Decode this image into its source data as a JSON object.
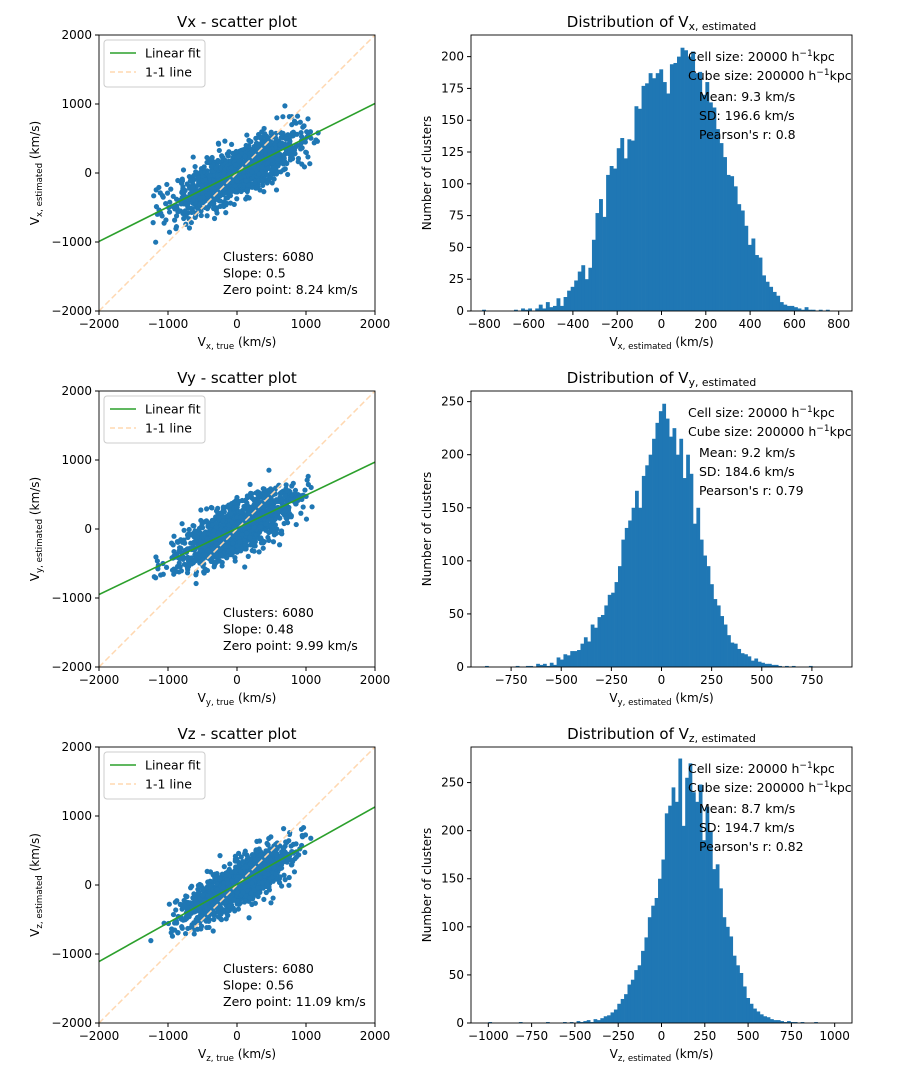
{
  "chart_data": [
    {
      "type": "scatter",
      "title": "Vx - scatter plot",
      "xlabel": {
        "base": "V",
        "sub": "x, true",
        "unit": " (km/s)"
      },
      "ylabel": {
        "base": "V",
        "sub": "x, estimated",
        "unit": " (km/s)"
      },
      "xlim": [
        -2000,
        2000
      ],
      "ylim": [
        -2000,
        2000
      ],
      "xticks": [
        -2000,
        -1000,
        0,
        1000,
        2000
      ],
      "yticks": [
        -2000,
        -1000,
        0,
        1000,
        2000
      ],
      "legend": {
        "placement": "top-left",
        "entries": [
          {
            "label": "Linear fit",
            "color": "#2ca02c",
            "style": "solid"
          },
          {
            "label": "1-1 line",
            "color": "#ffd8b1",
            "style": "dashed"
          }
        ]
      },
      "fit": {
        "slope": 0.5,
        "intercept": 8.24
      },
      "scatter_color": "#1f77b4",
      "cloud": {
        "x_center": 0,
        "x_sd": 420,
        "resid_sd": 180,
        "n_points": 1400
      },
      "annotations": [
        "Clusters: 6080",
        "Slope: 0.5",
        "Zero point: 8.24 km/s"
      ]
    },
    {
      "type": "bar",
      "title": {
        "base": "Distribution of V",
        "sub": "x, estimated"
      },
      "xlabel": {
        "base": "V",
        "sub": "x, estimated",
        "unit": " (km/s)"
      },
      "ylabel": "Number of clusters",
      "xlim": [
        -860,
        860
      ],
      "ylim": [
        0,
        217
      ],
      "xticks": [
        -800,
        -600,
        -400,
        -200,
        0,
        200,
        400,
        600,
        800
      ],
      "yticks": [
        0,
        25,
        50,
        75,
        100,
        125,
        150,
        175,
        200
      ],
      "bar_color": "#1f77b4",
      "bins": {
        "min": -810,
        "max": 790,
        "count": 100
      },
      "counts": [
        1,
        0,
        0,
        0,
        0,
        0,
        0,
        0,
        0,
        1,
        0,
        2,
        1,
        2,
        0,
        2,
        5,
        2,
        7,
        3,
        4,
        10,
        4,
        11,
        16,
        19,
        24,
        31,
        36,
        25,
        34,
        56,
        77,
        88,
        74,
        107,
        114,
        112,
        128,
        136,
        120,
        135,
        134,
        161,
        159,
        177,
        179,
        187,
        183,
        187,
        190,
        180,
        171,
        194,
        195,
        200,
        207,
        205,
        200,
        204,
        187,
        188,
        170,
        180,
        164,
        160,
        143,
        132,
        121,
        107,
        106,
        98,
        84,
        79,
        67,
        52,
        57,
        44,
        42,
        28,
        23,
        19,
        15,
        12,
        7,
        5,
        4,
        4,
        3,
        2,
        1,
        3,
        1,
        1,
        0,
        1,
        0,
        1,
        0,
        0
      ],
      "annotations": [
        {
          "base": "Cell size: 20000 h",
          "sup": "−1",
          "tail": "kpc"
        },
        {
          "base": "Cube size: 200000 h",
          "sup": "−1",
          "tail": "kpc"
        },
        "Mean: 9.3 km/s",
        "SD: 196.6 km/s",
        "Pearson's r: 0.8"
      ]
    },
    {
      "type": "scatter",
      "title": "Vy - scatter plot",
      "xlabel": {
        "base": "V",
        "sub": "y, true",
        "unit": " (km/s)"
      },
      "ylabel": {
        "base": "V",
        "sub": "y, estimated",
        "unit": " (km/s)"
      },
      "xlim": [
        -2000,
        2000
      ],
      "ylim": [
        -2000,
        2000
      ],
      "xticks": [
        -2000,
        -1000,
        0,
        1000,
        2000
      ],
      "yticks": [
        -2000,
        -1000,
        0,
        1000,
        2000
      ],
      "legend": {
        "placement": "top-left",
        "entries": [
          {
            "label": "Linear fit",
            "color": "#2ca02c",
            "style": "solid"
          },
          {
            "label": "1-1 line",
            "color": "#ffd8b1",
            "style": "dashed"
          }
        ]
      },
      "fit": {
        "slope": 0.48,
        "intercept": 9.99
      },
      "scatter_color": "#1f77b4",
      "cloud": {
        "x_center": 0,
        "x_sd": 400,
        "resid_sd": 170,
        "n_points": 1400
      },
      "annotations": [
        "Clusters: 6080",
        "Slope: 0.48",
        "Zero point: 9.99 km/s"
      ]
    },
    {
      "type": "bar",
      "title": {
        "base": "Distribution of V",
        "sub": "y, estimated"
      },
      "xlabel": {
        "base": "V",
        "sub": "y, estimated",
        "unit": " (km/s)"
      },
      "ylabel": "Number of clusters",
      "xlim": [
        -950,
        950
      ],
      "ylim": [
        0,
        260
      ],
      "xticks": [
        -750,
        -500,
        -250,
        0,
        250,
        500,
        750
      ],
      "yticks": [
        0,
        50,
        100,
        150,
        200,
        250
      ],
      "bar_color": "#1f77b4",
      "bins": {
        "min": -880,
        "max": 820,
        "count": 100
      },
      "counts": [
        1,
        0,
        0,
        0,
        0,
        0,
        0,
        0,
        0,
        1,
        0,
        0,
        1,
        1,
        0,
        3,
        2,
        3,
        1,
        4,
        2,
        9,
        7,
        12,
        11,
        15,
        15,
        16,
        22,
        28,
        24,
        40,
        37,
        47,
        49,
        58,
        68,
        70,
        80,
        95,
        120,
        131,
        138,
        150,
        166,
        150,
        180,
        190,
        200,
        215,
        230,
        241,
        248,
        234,
        217,
        225,
        200,
        215,
        178,
        200,
        182,
        135,
        150,
        120,
        105,
        95,
        78,
        64,
        58,
        48,
        40,
        30,
        23,
        22,
        17,
        13,
        12,
        10,
        6,
        8,
        5,
        4,
        3,
        3,
        2,
        2,
        1,
        0,
        1,
        0,
        1,
        0,
        0,
        0,
        0,
        1,
        0,
        0,
        0,
        0
      ],
      "annotations": [
        {
          "base": "Cell size: 20000 h",
          "sup": "−1",
          "tail": "kpc"
        },
        {
          "base": "Cube size: 200000 h",
          "sup": "−1",
          "tail": "kpc"
        },
        "Mean: 9.2 km/s",
        "SD: 184.6 km/s",
        "Pearson's r: 0.79"
      ]
    },
    {
      "type": "scatter",
      "title": "Vz - scatter plot",
      "xlabel": {
        "base": "V",
        "sub": "z, true",
        "unit": " (km/s)"
      },
      "ylabel": {
        "base": "V",
        "sub": "z, estimated",
        "unit": " (km/s)"
      },
      "xlim": [
        -2000,
        2000
      ],
      "ylim": [
        -2000,
        2000
      ],
      "xticks": [
        -2000,
        -1000,
        0,
        1000,
        2000
      ],
      "yticks": [
        -2000,
        -1000,
        0,
        1000,
        2000
      ],
      "legend": {
        "placement": "top-left",
        "entries": [
          {
            "label": "Linear fit",
            "color": "#2ca02c",
            "style": "solid"
          },
          {
            "label": "1-1 line",
            "color": "#ffd8b1",
            "style": "dashed"
          }
        ]
      },
      "fit": {
        "slope": 0.56,
        "intercept": 11.09
      },
      "scatter_color": "#1f77b4",
      "cloud": {
        "x_center": 0,
        "x_sd": 380,
        "resid_sd": 160,
        "n_points": 1400
      },
      "annotations": [
        "Clusters: 6080",
        "Slope: 0.56",
        "Zero point: 11.09 km/s"
      ]
    },
    {
      "type": "bar",
      "title": {
        "base": "Distribution of V",
        "sub": "z, estimated"
      },
      "xlabel": {
        "base": "V",
        "sub": "z, estimated",
        "unit": " (km/s)"
      },
      "ylabel": "Number of clusters",
      "xlim": [
        -1100,
        1100
      ],
      "ylim": [
        0,
        287
      ],
      "xticks": [
        -1000,
        -750,
        -500,
        -250,
        0,
        250,
        500,
        750,
        1000
      ],
      "yticks": [
        0,
        50,
        100,
        150,
        200,
        250
      ],
      "bar_color": "#1f77b4",
      "bins": {
        "min": -1000,
        "max": 960,
        "count": 100
      },
      "counts": [
        1,
        0,
        0,
        0,
        0,
        0,
        0,
        0,
        0,
        1,
        0,
        0,
        0,
        0,
        0,
        0,
        0,
        1,
        0,
        0,
        0,
        0,
        1,
        0,
        1,
        0,
        2,
        1,
        2,
        3,
        1,
        4,
        3,
        5,
        7,
        8,
        11,
        14,
        20,
        25,
        30,
        40,
        45,
        55,
        60,
        75,
        89,
        110,
        122,
        130,
        150,
        170,
        218,
        226,
        245,
        230,
        275,
        205,
        255,
        270,
        240,
        230,
        248,
        190,
        225,
        200,
        160,
        165,
        140,
        110,
        100,
        90,
        70,
        60,
        52,
        38,
        26,
        20,
        15,
        12,
        9,
        7,
        6,
        4,
        3,
        3,
        2,
        1,
        2,
        1,
        1,
        0,
        1,
        0,
        0,
        0,
        1,
        0,
        0,
        0
      ],
      "annotations": [
        {
          "base": "Cell size: 20000 h",
          "sup": "−1",
          "tail": "kpc"
        },
        {
          "base": "Cube size: 200000 h",
          "sup": "−1",
          "tail": "kpc"
        },
        "Mean: 8.7 km/s",
        "SD: 194.7 km/s",
        "Pearson's r: 0.82"
      ]
    }
  ]
}
